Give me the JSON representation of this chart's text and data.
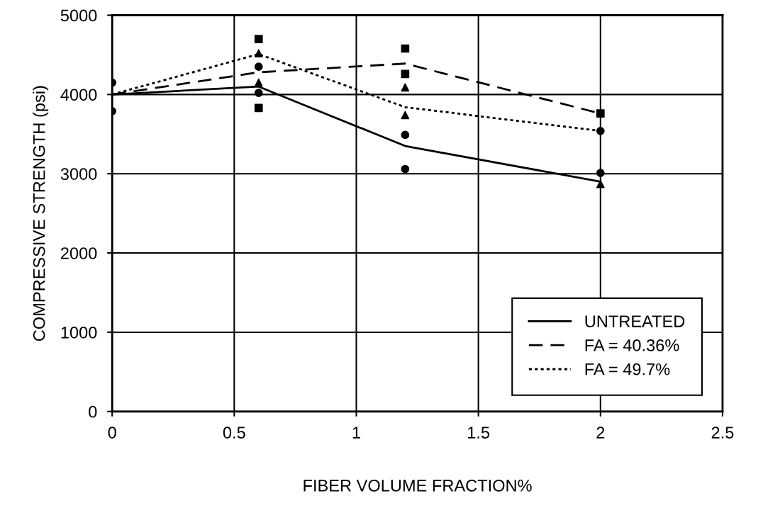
{
  "chart_data": {
    "type": "line",
    "xlabel": "FIBER VOLUME FRACTION%",
    "ylabel": "COMPRESSIVE STRENGTH (psi)",
    "xlim": [
      0,
      2.5
    ],
    "xticks": [
      0,
      0.5,
      1,
      1.5,
      2,
      2.5
    ],
    "ylim": [
      0,
      5000
    ],
    "yticks": [
      0,
      1000,
      2000,
      3000,
      4000,
      5000
    ],
    "grid": true,
    "legend": "bottom right",
    "series": [
      {
        "name": "UNTREATED",
        "color": "#000000",
        "line_style": "solid",
        "marker": "none",
        "x": [
          0,
          0.6,
          1.2,
          2
        ],
        "values": [
          4000,
          4100,
          3350,
          2900
        ]
      },
      {
        "name": "FA = 40.36%",
        "color": "#000000",
        "line_style": "dashed",
        "marker": "none",
        "x": [
          0,
          0.6,
          1.2,
          2
        ],
        "values": [
          4000,
          4280,
          4390,
          3760
        ]
      },
      {
        "name": "FA = 49.7%",
        "color": "#000000",
        "line_style": "dotted",
        "marker": "none",
        "x": [
          0,
          0.6,
          1.2,
          2
        ],
        "values": [
          4000,
          4510,
          3840,
          3540
        ]
      },
      {
        "type": "scatter",
        "color": "#000000",
        "marker": "circle",
        "x": [
          0,
          0,
          0.6,
          0.6,
          1.2,
          1.2,
          2,
          2
        ],
        "values": [
          4150,
          3790,
          4350,
          4020,
          3490,
          3060,
          3540,
          3010
        ]
      },
      {
        "type": "scatter",
        "color": "#000000",
        "marker": "square",
        "x": [
          0.6,
          0.6,
          1.2,
          1.2,
          2
        ],
        "values": [
          4700,
          3830,
          4580,
          4260,
          3760
        ]
      },
      {
        "type": "scatter",
        "color": "#000000",
        "marker": "triangle",
        "x": [
          0.6,
          0.6,
          1.2,
          1.2,
          2
        ],
        "values": [
          4520,
          4150,
          4090,
          3740,
          2870
        ]
      }
    ]
  }
}
